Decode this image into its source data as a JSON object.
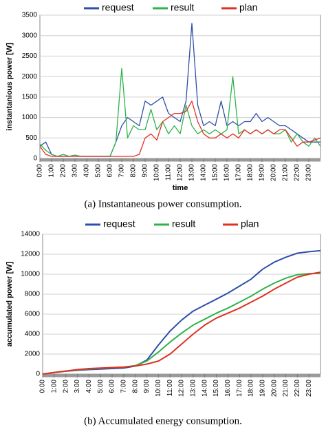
{
  "chart_data": [
    {
      "type": "line",
      "ylabel": "instantanious power [W]",
      "xlabel": "time",
      "caption": "(a) Instantaneous power consumption.",
      "x": [
        0,
        0.5,
        1,
        1.5,
        2,
        2.5,
        3,
        3.5,
        4,
        4.5,
        5,
        5.5,
        6,
        6.5,
        7,
        7.5,
        8,
        8.5,
        9,
        9.5,
        10,
        10.5,
        11,
        11.5,
        12,
        12.5,
        13,
        13.5,
        14,
        14.5,
        15,
        15.5,
        16,
        16.5,
        17,
        17.5,
        18,
        18.5,
        19,
        19.5,
        20,
        20.5,
        21,
        21.5,
        22,
        22.5,
        23,
        23.5,
        24
      ],
      "series": [
        {
          "name": "request",
          "color": "#2e4fa8",
          "values": [
            300,
            400,
            100,
            50,
            50,
            50,
            80,
            50,
            50,
            50,
            50,
            50,
            50,
            400,
            800,
            1000,
            900,
            800,
            1400,
            1300,
            1400,
            1500,
            1100,
            1000,
            900,
            1400,
            3300,
            1300,
            800,
            900,
            800,
            1400,
            800,
            900,
            800,
            900,
            900,
            1100,
            900,
            1000,
            900,
            800,
            800,
            700,
            600,
            500,
            400,
            400,
            400
          ]
        },
        {
          "name": "result",
          "color": "#2db34a",
          "values": [
            350,
            200,
            100,
            50,
            100,
            50,
            80,
            50,
            50,
            50,
            50,
            50,
            50,
            400,
            2200,
            500,
            800,
            700,
            700,
            1200,
            700,
            900,
            600,
            800,
            600,
            1300,
            800,
            600,
            700,
            600,
            700,
            600,
            700,
            2000,
            600,
            700,
            600,
            700,
            600,
            700,
            600,
            600,
            700,
            400,
            600,
            400,
            300,
            500,
            300
          ]
        },
        {
          "name": "plan",
          "color": "#e03020",
          "values": [
            300,
            100,
            50,
            50,
            50,
            50,
            50,
            50,
            50,
            50,
            50,
            50,
            50,
            50,
            50,
            50,
            50,
            100,
            500,
            600,
            450,
            900,
            1000,
            1100,
            1100,
            1150,
            1400,
            900,
            600,
            500,
            500,
            600,
            500,
            600,
            500,
            700,
            600,
            700,
            600,
            700,
            600,
            700,
            700,
            500,
            300,
            400,
            400,
            450,
            500
          ]
        }
      ],
      "xlim": [
        0,
        24
      ],
      "xticks": [
        {
          "value": 0,
          "label": "0:00"
        },
        {
          "value": 1,
          "label": "1:00"
        },
        {
          "value": 2,
          "label": "2:00"
        },
        {
          "value": 3,
          "label": "3:00"
        },
        {
          "value": 4,
          "label": "4:00"
        },
        {
          "value": 5,
          "label": "5:00"
        },
        {
          "value": 6,
          "label": "6:00"
        },
        {
          "value": 7,
          "label": "7:00"
        },
        {
          "value": 8,
          "label": "8:00"
        },
        {
          "value": 9,
          "label": "9:00"
        },
        {
          "value": 10,
          "label": "10:00"
        },
        {
          "value": 11,
          "label": "11:00"
        },
        {
          "value": 12,
          "label": "12:00"
        },
        {
          "value": 13,
          "label": "13:00"
        },
        {
          "value": 14,
          "label": "14:00"
        },
        {
          "value": 15,
          "label": "15:00"
        },
        {
          "value": 16,
          "label": "16:00"
        },
        {
          "value": 17,
          "label": "17:00"
        },
        {
          "value": 18,
          "label": "18:00"
        },
        {
          "value": 19,
          "label": "19:00"
        },
        {
          "value": 20,
          "label": "20:00"
        },
        {
          "value": 21,
          "label": "21:00"
        },
        {
          "value": 22,
          "label": "22:00"
        },
        {
          "value": 23,
          "label": "23:00"
        }
      ],
      "ylim": [
        0,
        3500
      ],
      "yticks": [
        0,
        500,
        1000,
        1500,
        2000,
        2500,
        3000,
        3500
      ],
      "grid": true,
      "legend": "top"
    },
    {
      "type": "line",
      "ylabel": "accumulated power [W]",
      "caption": "(b) Accumulated energy consumption.",
      "x": [
        0,
        1,
        2,
        3,
        4,
        5,
        6,
        7,
        8,
        9,
        10,
        11,
        12,
        13,
        14,
        15,
        16,
        17,
        18,
        19,
        20,
        21,
        22,
        23,
        24
      ],
      "series": [
        {
          "name": "request",
          "color": "#2e4fa8",
          "values": [
            0,
            150,
            280,
            380,
            450,
            500,
            550,
            600,
            800,
            1400,
            2900,
            4300,
            5400,
            6300,
            6900,
            7500,
            8100,
            8800,
            9500,
            10500,
            11200,
            11700,
            12100,
            12250,
            12350
          ]
        },
        {
          "name": "result",
          "color": "#2db34a",
          "values": [
            0,
            150,
            300,
            420,
            520,
            580,
            650,
            700,
            850,
            1300,
            2200,
            3200,
            4100,
            4900,
            5500,
            6100,
            6600,
            7200,
            7800,
            8500,
            9100,
            9600,
            9950,
            10050,
            10100
          ]
        },
        {
          "name": "plan",
          "color": "#e03020",
          "values": [
            0,
            150,
            300,
            450,
            550,
            600,
            650,
            700,
            800,
            1000,
            1300,
            2000,
            3000,
            4000,
            4900,
            5600,
            6100,
            6600,
            7200,
            7800,
            8500,
            9100,
            9700,
            10000,
            10200
          ]
        }
      ],
      "xlim": [
        0,
        24
      ],
      "xticks": [
        {
          "value": 0,
          "label": "0:00"
        },
        {
          "value": 1,
          "label": "1:00"
        },
        {
          "value": 2,
          "label": "2:00"
        },
        {
          "value": 3,
          "label": "3:00"
        },
        {
          "value": 4,
          "label": "4:00"
        },
        {
          "value": 5,
          "label": "5:00"
        },
        {
          "value": 6,
          "label": "6:00"
        },
        {
          "value": 7,
          "label": "7:00"
        },
        {
          "value": 8,
          "label": "8:00"
        },
        {
          "value": 9,
          "label": "9:00"
        },
        {
          "value": 10,
          "label": "10:00"
        },
        {
          "value": 11,
          "label": "11:00"
        },
        {
          "value": 12,
          "label": "12:00"
        },
        {
          "value": 13,
          "label": "13:00"
        },
        {
          "value": 14,
          "label": "14:00"
        },
        {
          "value": 15,
          "label": "15:00"
        },
        {
          "value": 16,
          "label": "16:00"
        },
        {
          "value": 17,
          "label": "17:00"
        },
        {
          "value": 18,
          "label": "18:00"
        },
        {
          "value": 19,
          "label": "19:00"
        },
        {
          "value": 20,
          "label": "20:00"
        },
        {
          "value": 21,
          "label": "21:00"
        },
        {
          "value": 22,
          "label": "22:00"
        },
        {
          "value": 23,
          "label": "23:00"
        }
      ],
      "ylim": [
        0,
        14000
      ],
      "yticks": [
        0,
        2000,
        4000,
        6000,
        8000,
        10000,
        12000,
        14000
      ],
      "grid": true,
      "legend": "top"
    }
  ]
}
